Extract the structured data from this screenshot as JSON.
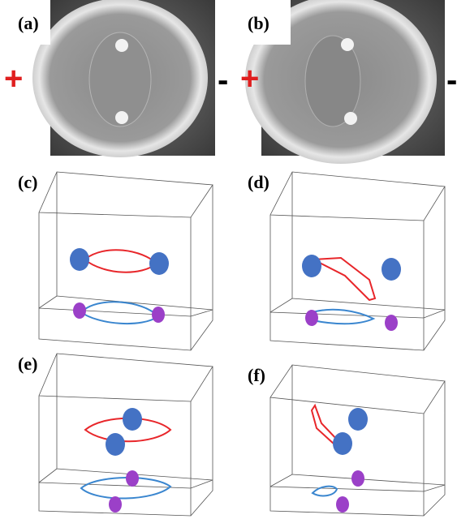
{
  "panels": [
    {
      "label": "(a)",
      "left_sign": "+",
      "right_sign": "-"
    },
    {
      "label": "(b)",
      "left_sign": "+",
      "right_sign": "-"
    },
    {
      "label": "(c)"
    },
    {
      "label": "(d)"
    },
    {
      "label": "(e)"
    },
    {
      "label": "(f)"
    }
  ]
}
